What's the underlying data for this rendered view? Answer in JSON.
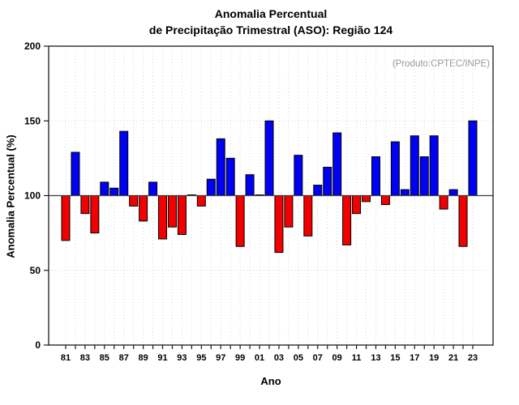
{
  "title": {
    "line1": "Anomalia Percentual",
    "line2": "de Precipitação Trimestral (ASO): Região 124"
  },
  "annotation": "(Produto:CPTEC/INPE)",
  "axes": {
    "xlabel": "Ano",
    "ylabel": "Anomalia Percentual (%)"
  },
  "colors": {
    "bar_above": "#0000F2",
    "bar_below": "#F20000",
    "bar_outline": "#000000",
    "baseline_line": "#3a3a3a",
    "frame": "#1a1a1a",
    "grid": "#d4d4d4",
    "annotation_gray": "#999999"
  },
  "chart_data": {
    "type": "bar",
    "title": "Anomalia Percentual de Precipitação Trimestral (ASO): Região 124",
    "xlabel": "Ano",
    "ylabel": "Anomalia Percentual (%)",
    "ylim": [
      0,
      200
    ],
    "yticks": [
      0,
      50,
      100,
      150,
      200
    ],
    "baseline": 100,
    "grid": "dotted: horizontal at 50 and 150, vertical at every year",
    "legend": "none",
    "annotation": "(Produto:CPTEC/INPE)",
    "color_rule": "value >= 100 blue, value < 100 red",
    "categories": [
      "81",
      "82",
      "83",
      "84",
      "85",
      "86",
      "87",
      "88",
      "89",
      "90",
      "91",
      "92",
      "93",
      "94",
      "95",
      "96",
      "97",
      "98",
      "99",
      "00",
      "01",
      "02",
      "03",
      "04",
      "05",
      "06",
      "07",
      "08",
      "09",
      "10",
      "11",
      "12",
      "13",
      "14",
      "15",
      "16",
      "17",
      "18",
      "19",
      "20",
      "21",
      "22",
      "23"
    ],
    "xtick_labels": [
      "81",
      "83",
      "85",
      "87",
      "89",
      "91",
      "93",
      "95",
      "97",
      "99",
      "01",
      "03",
      "05",
      "07",
      "09",
      "11",
      "13",
      "15",
      "17",
      "19",
      "21",
      "23"
    ],
    "values": [
      70,
      129,
      88,
      75,
      109,
      105,
      143,
      93,
      83,
      109,
      71,
      79,
      74,
      100.5,
      93,
      111,
      138,
      125,
      66,
      114,
      100.5,
      150,
      62,
      79,
      127,
      73,
      107,
      119,
      142,
      67,
      88,
      96,
      126,
      94,
      136,
      104,
      140,
      126,
      140,
      91,
      104,
      66,
      150
    ]
  }
}
